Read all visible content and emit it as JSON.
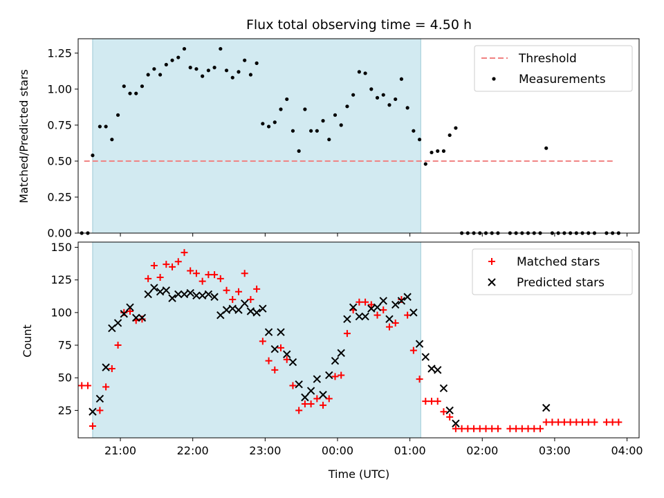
{
  "chart_data": [
    {
      "type": "scatter",
      "title": "Flux total observing time = 4.50 h",
      "xlabel": "",
      "ylabel": "Matched/Predicted stars",
      "ylim": [
        0,
        1.35
      ],
      "xlim": [
        "20:25",
        "04:10"
      ],
      "y_ticks": [
        "0.00",
        "0.25",
        "0.50",
        "0.75",
        "1.00",
        "1.25"
      ],
      "shaded_interval": [
        "20:37",
        "01:09"
      ],
      "shaded_color": "#add8e6",
      "legend_position": "top-right",
      "threshold": {
        "name": "Threshold",
        "value": 0.5,
        "x_range": [
          "20:30",
          "03:50"
        ],
        "color": "#f08080"
      },
      "series": [
        {
          "name": "Measurements",
          "color": "#000000",
          "marker": "dot",
          "points": [
            [
              "20:28",
              0
            ],
            [
              "20:33",
              0
            ],
            [
              "20:37",
              0.54
            ],
            [
              "20:43",
              0.74
            ],
            [
              "20:48",
              0.74
            ],
            [
              "20:53",
              0.65
            ],
            [
              "20:58",
              0.82
            ],
            [
              "21:03",
              1.02
            ],
            [
              "21:08",
              0.97
            ],
            [
              "21:13",
              0.97
            ],
            [
              "21:18",
              1.02
            ],
            [
              "21:23",
              1.1
            ],
            [
              "21:28",
              1.14
            ],
            [
              "21:33",
              1.1
            ],
            [
              "21:38",
              1.17
            ],
            [
              "21:43",
              1.2
            ],
            [
              "21:48",
              1.22
            ],
            [
              "21:53",
              1.28
            ],
            [
              "21:58",
              1.15
            ],
            [
              "22:03",
              1.14
            ],
            [
              "22:08",
              1.09
            ],
            [
              "22:13",
              1.13
            ],
            [
              "22:18",
              1.15
            ],
            [
              "22:23",
              1.28
            ],
            [
              "22:28",
              1.13
            ],
            [
              "22:33",
              1.08
            ],
            [
              "22:38",
              1.12
            ],
            [
              "22:43",
              1.2
            ],
            [
              "22:48",
              1.1
            ],
            [
              "22:53",
              1.18
            ],
            [
              "22:58",
              0.76
            ],
            [
              "23:03",
              0.74
            ],
            [
              "23:08",
              0.77
            ],
            [
              "23:13",
              0.86
            ],
            [
              "23:18",
              0.93
            ],
            [
              "23:23",
              0.71
            ],
            [
              "23:28",
              0.57
            ],
            [
              "23:33",
              0.86
            ],
            [
              "23:38",
              0.71
            ],
            [
              "23:43",
              0.71
            ],
            [
              "23:48",
              0.78
            ],
            [
              "23:53",
              0.65
            ],
            [
              "23:58",
              0.82
            ],
            [
              "00:03",
              0.75
            ],
            [
              "00:08",
              0.88
            ],
            [
              "00:13",
              0.96
            ],
            [
              "00:18",
              1.12
            ],
            [
              "00:23",
              1.11
            ],
            [
              "00:28",
              1.0
            ],
            [
              "00:33",
              0.94
            ],
            [
              "00:38",
              0.96
            ],
            [
              "00:43",
              0.89
            ],
            [
              "00:48",
              0.93
            ],
            [
              "00:53",
              1.07
            ],
            [
              "00:58",
              0.87
            ],
            [
              "01:03",
              0.71
            ],
            [
              "01:08",
              0.65
            ],
            [
              "01:13",
              0.48
            ],
            [
              "01:18",
              0.56
            ],
            [
              "01:23",
              0.57
            ],
            [
              "01:28",
              0.57
            ],
            [
              "01:33",
              0.68
            ],
            [
              "01:38",
              0.73
            ],
            [
              "01:43",
              0
            ],
            [
              "01:48",
              0
            ],
            [
              "01:53",
              0
            ],
            [
              "01:58",
              0
            ],
            [
              "02:03",
              0
            ],
            [
              "02:08",
              0
            ],
            [
              "02:13",
              0
            ],
            [
              "02:23",
              0
            ],
            [
              "02:28",
              0
            ],
            [
              "02:33",
              0
            ],
            [
              "02:38",
              0
            ],
            [
              "02:43",
              0
            ],
            [
              "02:48",
              0
            ],
            [
              "02:53",
              0.59
            ],
            [
              "02:58",
              0
            ],
            [
              "03:03",
              0
            ],
            [
              "03:08",
              0
            ],
            [
              "03:13",
              0
            ],
            [
              "03:18",
              0
            ],
            [
              "03:23",
              0
            ],
            [
              "03:28",
              0
            ],
            [
              "03:33",
              0
            ],
            [
              "03:43",
              0
            ],
            [
              "03:48",
              0
            ],
            [
              "03:53",
              0
            ]
          ]
        }
      ]
    },
    {
      "type": "scatter",
      "title": "",
      "xlabel": "Time (UTC)",
      "ylabel": "Count",
      "ylim": [
        4,
        154
      ],
      "xlim": [
        "20:25",
        "04:10"
      ],
      "y_ticks": [
        "25",
        "50",
        "75",
        "100",
        "125",
        "150"
      ],
      "x_ticks": [
        "21:00",
        "22:00",
        "23:00",
        "00:00",
        "01:00",
        "02:00",
        "03:00",
        "04:00"
      ],
      "shaded_interval": [
        "20:37",
        "01:09"
      ],
      "shaded_color": "#add8e6",
      "legend_position": "top-right",
      "series": [
        {
          "name": "Matched stars",
          "color": "#ff0000",
          "marker": "plus",
          "points": [
            [
              "20:28",
              44
            ],
            [
              "20:33",
              44
            ],
            [
              "20:37",
              13
            ],
            [
              "20:43",
              25
            ],
            [
              "20:48",
              43
            ],
            [
              "20:53",
              57
            ],
            [
              "20:58",
              75
            ],
            [
              "21:03",
              100
            ],
            [
              "21:08",
              101
            ],
            [
              "21:13",
              94
            ],
            [
              "21:18",
              95
            ],
            [
              "21:23",
              126
            ],
            [
              "21:28",
              136
            ],
            [
              "21:33",
              127
            ],
            [
              "21:38",
              137
            ],
            [
              "21:43",
              135
            ],
            [
              "21:48",
              139
            ],
            [
              "21:53",
              146
            ],
            [
              "21:58",
              132
            ],
            [
              "22:03",
              130
            ],
            [
              "22:08",
              124
            ],
            [
              "22:13",
              129
            ],
            [
              "22:18",
              129
            ],
            [
              "22:23",
              126
            ],
            [
              "22:28",
              117
            ],
            [
              "22:33",
              110
            ],
            [
              "22:38",
              116
            ],
            [
              "22:43",
              130
            ],
            [
              "22:48",
              110
            ],
            [
              "22:53",
              118
            ],
            [
              "22:58",
              78
            ],
            [
              "23:03",
              63
            ],
            [
              "23:08",
              56
            ],
            [
              "23:13",
              73
            ],
            [
              "23:18",
              64
            ],
            [
              "23:23",
              44
            ],
            [
              "23:28",
              25
            ],
            [
              "23:33",
              30
            ],
            [
              "23:38",
              30
            ],
            [
              "23:43",
              34
            ],
            [
              "23:48",
              29
            ],
            [
              "23:53",
              34
            ],
            [
              "23:58",
              51
            ],
            [
              "00:03",
              52
            ],
            [
              "00:08",
              84
            ],
            [
              "00:13",
              102
            ],
            [
              "00:18",
              108
            ],
            [
              "00:23",
              108
            ],
            [
              "00:28",
              106
            ],
            [
              "00:33",
              98
            ],
            [
              "00:38",
              102
            ],
            [
              "00:43",
              89
            ],
            [
              "00:48",
              92
            ],
            [
              "00:53",
              110
            ],
            [
              "00:58",
              98
            ],
            [
              "01:03",
              71
            ],
            [
              "01:08",
              49
            ],
            [
              "01:13",
              32
            ],
            [
              "01:18",
              32
            ],
            [
              "01:23",
              32
            ],
            [
              "01:28",
              24
            ],
            [
              "01:33",
              20
            ],
            [
              "01:38",
              11
            ],
            [
              "01:43",
              11
            ],
            [
              "01:48",
              11
            ],
            [
              "01:53",
              11
            ],
            [
              "01:58",
              11
            ],
            [
              "02:03",
              11
            ],
            [
              "02:08",
              11
            ],
            [
              "02:13",
              11
            ],
            [
              "02:23",
              11
            ],
            [
              "02:28",
              11
            ],
            [
              "02:33",
              11
            ],
            [
              "02:38",
              11
            ],
            [
              "02:43",
              11
            ],
            [
              "02:48",
              11
            ],
            [
              "02:53",
              16
            ],
            [
              "02:58",
              16
            ],
            [
              "03:03",
              16
            ],
            [
              "03:08",
              16
            ],
            [
              "03:13",
              16
            ],
            [
              "03:18",
              16
            ],
            [
              "03:23",
              16
            ],
            [
              "03:28",
              16
            ],
            [
              "03:33",
              16
            ],
            [
              "03:43",
              16
            ],
            [
              "03:48",
              16
            ],
            [
              "03:53",
              16
            ]
          ]
        },
        {
          "name": "Predicted stars",
          "color": "#000000",
          "marker": "x",
          "points": [
            [
              "20:37",
              24
            ],
            [
              "20:43",
              34
            ],
            [
              "20:48",
              58
            ],
            [
              "20:53",
              88
            ],
            [
              "20:58",
              92
            ],
            [
              "21:03",
              99
            ],
            [
              "21:08",
              104
            ],
            [
              "21:13",
              96
            ],
            [
              "21:18",
              96
            ],
            [
              "21:23",
              114
            ],
            [
              "21:28",
              119
            ],
            [
              "21:33",
              116
            ],
            [
              "21:38",
              117
            ],
            [
              "21:43",
              111
            ],
            [
              "21:48",
              114
            ],
            [
              "21:53",
              114
            ],
            [
              "21:58",
              115
            ],
            [
              "22:03",
              113
            ],
            [
              "22:08",
              113
            ],
            [
              "22:13",
              114
            ],
            [
              "22:18",
              112
            ],
            [
              "22:23",
              98
            ],
            [
              "22:28",
              102
            ],
            [
              "22:33",
              103
            ],
            [
              "22:38",
              102
            ],
            [
              "22:43",
              107
            ],
            [
              "22:48",
              101
            ],
            [
              "22:53",
              100
            ],
            [
              "22:58",
              103
            ],
            [
              "23:03",
              85
            ],
            [
              "23:08",
              72
            ],
            [
              "23:13",
              85
            ],
            [
              "23:18",
              68
            ],
            [
              "23:23",
              62
            ],
            [
              "23:28",
              45
            ],
            [
              "23:33",
              35
            ],
            [
              "23:38",
              40
            ],
            [
              "23:43",
              49
            ],
            [
              "23:48",
              37
            ],
            [
              "23:53",
              52
            ],
            [
              "23:58",
              63
            ],
            [
              "00:03",
              69
            ],
            [
              "00:08",
              95
            ],
            [
              "00:13",
              104
            ],
            [
              "00:18",
              97
            ],
            [
              "00:23",
              97
            ],
            [
              "00:28",
              103
            ],
            [
              "00:33",
              104
            ],
            [
              "00:38",
              109
            ],
            [
              "00:43",
              95
            ],
            [
              "00:48",
              106
            ],
            [
              "00:53",
              109
            ],
            [
              "00:58",
              112
            ],
            [
              "01:03",
              100
            ],
            [
              "01:08",
              76
            ],
            [
              "01:13",
              66
            ],
            [
              "01:18",
              57
            ],
            [
              "01:23",
              56
            ],
            [
              "01:28",
              42
            ],
            [
              "01:33",
              25
            ],
            [
              "01:38",
              15
            ],
            [
              "02:53",
              27
            ]
          ]
        }
      ]
    }
  ]
}
